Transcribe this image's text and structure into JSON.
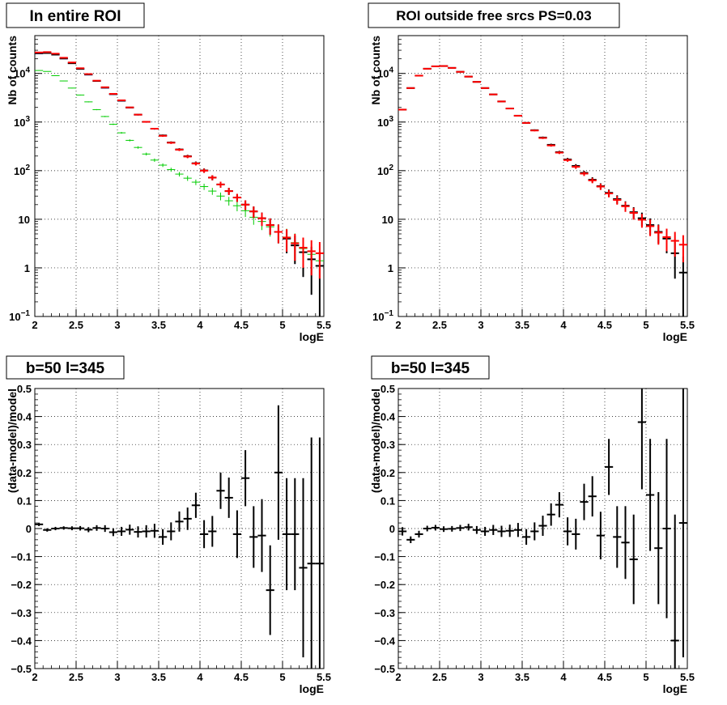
{
  "chart_data": [
    {
      "type": "errorbar",
      "title": "In entire ROI",
      "xlabel": "logE",
      "ylabel": "Nb of counts",
      "xlim": [
        2,
        5.5
      ],
      "ylim": [
        0.1,
        60000
      ],
      "yscale": "log",
      "grid": true,
      "x_ticks": [
        "2",
        "2.5",
        "3",
        "3.5",
        "4",
        "4.5",
        "5",
        "5.5"
      ],
      "y_ticks": [
        {
          "value": 0.1,
          "base": "10",
          "exp": "−1"
        },
        {
          "value": 1,
          "base": "1",
          "exp": ""
        },
        {
          "value": 10,
          "base": "10",
          "exp": ""
        },
        {
          "value": 100,
          "base": "10",
          "exp": "2"
        },
        {
          "value": 1000,
          "base": "10",
          "exp": "3"
        },
        {
          "value": 10000,
          "base": "10",
          "exp": "4"
        }
      ],
      "x": [
        2.05,
        2.15,
        2.25,
        2.35,
        2.45,
        2.55,
        2.65,
        2.75,
        2.85,
        2.95,
        3.05,
        3.15,
        3.25,
        3.35,
        3.45,
        3.55,
        3.65,
        3.75,
        3.85,
        3.95,
        4.05,
        4.15,
        4.25,
        4.35,
        4.45,
        4.55,
        4.65,
        4.75,
        4.85,
        4.95,
        5.05,
        5.15,
        5.25,
        5.35,
        5.45
      ],
      "series": [
        {
          "color": "#00cc00",
          "values": [
            11500,
            11000,
            9000,
            7000,
            5000,
            3600,
            2600,
            1800,
            1300,
            900,
            600,
            420,
            300,
            220,
            165,
            130,
            105,
            85,
            70,
            58,
            47,
            38,
            30,
            24,
            19,
            15,
            11,
            9,
            7,
            5.5,
            4.3,
            3.3,
            2.5,
            1.9,
            1.4
          ],
          "err": [
            110,
            105,
            95,
            84,
            71,
            60,
            51,
            42,
            36,
            30,
            24,
            20,
            17,
            15,
            13,
            11,
            10,
            9,
            8.4,
            7.6,
            6.9,
            6.2,
            5.5,
            4.9,
            4.4,
            3.9,
            3.3,
            3,
            2.6,
            2.3,
            2.1,
            1.8,
            1.6,
            1.4,
            0.9
          ]
        },
        {
          "color": "#0000ff",
          "values": [
            25500,
            25800,
            24000,
            20000,
            16000,
            12200,
            9300,
            6900,
            5000,
            3700,
            2700,
            1950,
            1400,
            1000,
            720,
            520,
            375,
            270,
            195,
            140,
            100,
            72,
            52,
            38,
            28,
            20,
            14.5,
            10.5,
            7.6,
            5.5,
            4,
            2.9,
            2.1,
            1.5,
            1.1
          ],
          "err": [
            160,
            160,
            155,
            141,
            126,
            110,
            96,
            83,
            71,
            61,
            52,
            44,
            37,
            32,
            27,
            23,
            19,
            16,
            14,
            12,
            10,
            8.5,
            7.2,
            6.2,
            5.3,
            4.5,
            3.8,
            3.2,
            2.8,
            2.3,
            2,
            1.7,
            1.45,
            1.22,
            1.05
          ]
        },
        {
          "color": "#000000",
          "values": [
            26000,
            26300,
            24400,
            20300,
            16200,
            12400,
            9500,
            7000,
            5100,
            3750,
            2750,
            1990,
            1420,
            1010,
            730,
            530,
            380,
            273,
            198,
            142,
            101,
            72,
            52,
            38,
            28,
            20,
            14.5,
            10.5,
            7.6,
            5.5,
            4,
            2.9,
            2.1,
            1.5,
            1.1
          ],
          "err": [
            161,
            162,
            156,
            142,
            127,
            111,
            97,
            84,
            71,
            61,
            52,
            45,
            38,
            32,
            27,
            23,
            19.5,
            16.5,
            14,
            12,
            10,
            8.5,
            7.2,
            6.2,
            5.3,
            4.5,
            3.8,
            3.2,
            2.8,
            2.3,
            2,
            1.7,
            1.45,
            1.22,
            1.05
          ]
        },
        {
          "color": "#ff0000",
          "values": [
            27000,
            27500,
            25500,
            21000,
            16800,
            12800,
            9700,
            7100,
            5200,
            3800,
            2800,
            2000,
            1420,
            1010,
            730,
            520,
            375,
            270,
            195,
            140,
            100,
            72,
            52,
            38,
            28,
            20,
            14.5,
            10.5,
            7.6,
            5.5,
            4.2,
            3.2,
            2.6,
            2.2,
            2.0
          ],
          "err": [
            164,
            166,
            160,
            145,
            130,
            113,
            98,
            84,
            72,
            62,
            53,
            45,
            38,
            32,
            27,
            23,
            19.5,
            16.5,
            14,
            12,
            10,
            8.5,
            7.2,
            6.2,
            5.3,
            4.5,
            3.8,
            3.2,
            2.8,
            2.3,
            2.05,
            1.8,
            1.6,
            1.5,
            1.4
          ]
        }
      ]
    },
    {
      "type": "errorbar",
      "title": "ROI outside free srcs PS=0.03",
      "xlabel": "logE",
      "ylabel": "Nb of counts",
      "xlim": [
        2,
        5.5
      ],
      "ylim": [
        0.1,
        60000
      ],
      "yscale": "log",
      "grid": true,
      "x_ticks": [
        "2",
        "2.5",
        "3",
        "3.5",
        "4",
        "4.5",
        "5",
        "5.5"
      ],
      "y_ticks": [
        {
          "value": 0.1,
          "base": "10",
          "exp": "−1"
        },
        {
          "value": 1,
          "base": "1",
          "exp": ""
        },
        {
          "value": 10,
          "base": "10",
          "exp": ""
        },
        {
          "value": 100,
          "base": "10",
          "exp": "2"
        },
        {
          "value": 1000,
          "base": "10",
          "exp": "3"
        },
        {
          "value": 10000,
          "base": "10",
          "exp": "4"
        }
      ],
      "x": [
        2.05,
        2.15,
        2.25,
        2.35,
        2.45,
        2.55,
        2.65,
        2.75,
        2.85,
        2.95,
        3.05,
        3.15,
        3.25,
        3.35,
        3.45,
        3.55,
        3.65,
        3.75,
        3.85,
        3.95,
        4.05,
        4.15,
        4.25,
        4.35,
        4.45,
        4.55,
        4.65,
        4.75,
        4.85,
        4.95,
        5.05,
        5.15,
        5.25,
        5.35,
        5.45
      ],
      "series": [
        {
          "color": "#000000",
          "values": [
            1800,
            5000,
            9000,
            12500,
            14000,
            14200,
            13000,
            10800,
            8600,
            6700,
            5000,
            3700,
            2650,
            1900,
            1350,
            960,
            680,
            480,
            340,
            240,
            170,
            125,
            90,
            65,
            48,
            35,
            26,
            19,
            14,
            10.5,
            7.6,
            5.5,
            4,
            2,
            0.8
          ],
          "err": [
            42,
            71,
            95,
            112,
            118,
            119,
            114,
            104,
            93,
            82,
            71,
            61,
            51,
            44,
            37,
            31,
            26,
            22,
            18.4,
            15.5,
            13,
            11.2,
            9.5,
            8.1,
            6.9,
            5.9,
            5.1,
            4.4,
            3.7,
            3.2,
            2.8,
            2.3,
            2,
            1.4,
            0.9
          ]
        },
        {
          "color": "#ff0000",
          "values": [
            1800,
            5000,
            9000,
            12500,
            14000,
            14200,
            13000,
            10800,
            8600,
            6700,
            5000,
            3700,
            2650,
            1900,
            1350,
            960,
            670,
            470,
            330,
            235,
            165,
            120,
            87,
            63,
            47,
            34,
            25,
            18.5,
            13.5,
            9.8,
            7.2,
            5.3,
            4.3,
            3.6,
            3.0
          ],
          "err": [
            42,
            71,
            95,
            112,
            118,
            119,
            114,
            104,
            93,
            82,
            71,
            61,
            51,
            44,
            37,
            31,
            26,
            22,
            18,
            15.3,
            12.8,
            11,
            9.3,
            7.9,
            6.9,
            5.8,
            5,
            4.3,
            3.7,
            3.1,
            2.7,
            2.3,
            2.1,
            1.9,
            1.7
          ]
        }
      ]
    },
    {
      "type": "errorbar",
      "title": "b=50 l=345",
      "xlabel": "logE",
      "ylabel": "(data-model)/model",
      "xlim": [
        2,
        5.5
      ],
      "ylim": [
        -0.5,
        0.5
      ],
      "yscale": "linear",
      "grid": true,
      "x_ticks": [
        "2",
        "2.5",
        "3",
        "3.5",
        "4",
        "4.5",
        "5",
        "5.5"
      ],
      "y_ticks": [
        "−0.5",
        "−0.4",
        "−0.3",
        "−0.2",
        "−0.1",
        "0",
        "0.1",
        "0.2",
        "0.3",
        "0.4",
        "0.5"
      ],
      "x": [
        2.05,
        2.15,
        2.25,
        2.35,
        2.45,
        2.55,
        2.65,
        2.75,
        2.85,
        2.95,
        3.05,
        3.15,
        3.25,
        3.35,
        3.45,
        3.55,
        3.65,
        3.75,
        3.85,
        3.95,
        4.05,
        4.15,
        4.25,
        4.35,
        4.45,
        4.55,
        4.65,
        4.75,
        4.85,
        4.95,
        5.05,
        5.15,
        5.25,
        5.35,
        5.45
      ],
      "series": [
        {
          "color": "#000000",
          "values": [
            0.015,
            -0.005,
            0.0,
            0.002,
            0.001,
            0.001,
            -0.004,
            0.002,
            0.0,
            -0.013,
            -0.01,
            -0.004,
            -0.012,
            -0.01,
            -0.008,
            -0.03,
            -0.01,
            0.025,
            0.035,
            0.083,
            -0.02,
            -0.01,
            0.135,
            0.11,
            -0.02,
            0.18,
            -0.03,
            -0.025,
            -0.22,
            0.2,
            -0.02,
            -0.02,
            -0.14,
            -0.125,
            -0.125
          ],
          "err": [
            0.006,
            0.006,
            0.006,
            0.006,
            0.007,
            0.008,
            0.009,
            0.01,
            0.012,
            0.014,
            0.016,
            0.018,
            0.02,
            0.022,
            0.025,
            0.028,
            0.032,
            0.036,
            0.04,
            0.045,
            0.05,
            0.055,
            0.065,
            0.072,
            0.085,
            0.1,
            0.11,
            0.13,
            0.16,
            0.24,
            0.2,
            0.2,
            0.32,
            0.45,
            0.45
          ]
        }
      ]
    },
    {
      "type": "errorbar",
      "title": "b=50 l=345",
      "xlabel": "logE",
      "ylabel": "(data-model)/model",
      "xlim": [
        2,
        5.5
      ],
      "ylim": [
        -0.5,
        0.5
      ],
      "yscale": "linear",
      "grid": true,
      "x_ticks": [
        "2",
        "2.5",
        "3",
        "3.5",
        "4",
        "4.5",
        "5",
        "5.5"
      ],
      "y_ticks": [
        "−0.5",
        "−0.4",
        "−0.3",
        "−0.2",
        "−0.1",
        "0",
        "0.1",
        "0.2",
        "0.3",
        "0.4",
        "0.5"
      ],
      "x": [
        2.05,
        2.15,
        2.25,
        2.35,
        2.45,
        2.55,
        2.65,
        2.75,
        2.85,
        2.95,
        3.05,
        3.15,
        3.25,
        3.35,
        3.45,
        3.55,
        3.65,
        3.75,
        3.85,
        3.95,
        4.05,
        4.15,
        4.25,
        4.35,
        4.45,
        4.55,
        4.65,
        4.75,
        4.85,
        4.95,
        5.05,
        5.15,
        5.25,
        5.35,
        5.45
      ],
      "series": [
        {
          "color": "#000000",
          "values": [
            -0.01,
            -0.04,
            -0.02,
            0.0,
            0.003,
            -0.002,
            -0.001,
            0.002,
            0.005,
            -0.005,
            -0.01,
            -0.005,
            -0.01,
            -0.008,
            -0.005,
            -0.03,
            -0.01,
            0.01,
            0.05,
            0.085,
            -0.01,
            -0.02,
            0.095,
            0.115,
            -0.025,
            0.22,
            -0.03,
            -0.05,
            -0.11,
            0.38,
            0.12,
            -0.07,
            0.0,
            -0.4,
            0.02
          ],
          "err": [
            0.015,
            0.012,
            0.012,
            0.01,
            0.01,
            0.01,
            0.01,
            0.011,
            0.012,
            0.014,
            0.016,
            0.018,
            0.02,
            0.022,
            0.025,
            0.028,
            0.032,
            0.036,
            0.04,
            0.045,
            0.05,
            0.055,
            0.065,
            0.072,
            0.085,
            0.1,
            0.11,
            0.13,
            0.16,
            0.24,
            0.2,
            0.2,
            0.32,
            0.45,
            0.48
          ]
        }
      ]
    }
  ]
}
